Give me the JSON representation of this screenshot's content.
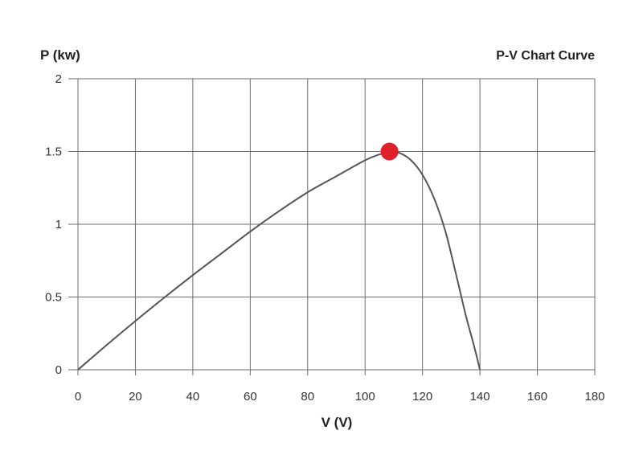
{
  "chart_data": {
    "type": "line",
    "title": "P-V Chart Curve",
    "xlabel": "V (V)",
    "ylabel": "P (kw)",
    "xlim": [
      0,
      180
    ],
    "ylim": [
      0,
      2
    ],
    "xticks": [
      0,
      20,
      40,
      60,
      80,
      100,
      120,
      140,
      160,
      180
    ],
    "yticks": [
      0,
      0.5,
      1,
      1.5,
      2
    ],
    "xtick_labels": [
      "0",
      "20",
      "40",
      "60",
      "80",
      "100",
      "120",
      "140",
      "160",
      "180"
    ],
    "ytick_labels": [
      "0",
      "0.5",
      "1",
      "1.5",
      "2"
    ],
    "grid": true,
    "series": [
      {
        "color": "#555555",
        "x": [
          0,
          10,
          20,
          30,
          40,
          50,
          60,
          70,
          80,
          90,
          100,
          105,
          108.5,
          112,
          116,
          120,
          124,
          128,
          132,
          135,
          138,
          140
        ],
        "y": [
          0,
          0.17,
          0.335,
          0.495,
          0.65,
          0.8,
          0.95,
          1.09,
          1.22,
          1.33,
          1.44,
          1.48,
          1.5,
          1.49,
          1.44,
          1.34,
          1.18,
          0.95,
          0.63,
          0.38,
          0.16,
          0
        ]
      }
    ],
    "annotations": [
      {
        "type": "marker",
        "label": "",
        "x": 108.5,
        "y": 1.5,
        "color": "#e0202a"
      }
    ]
  }
}
